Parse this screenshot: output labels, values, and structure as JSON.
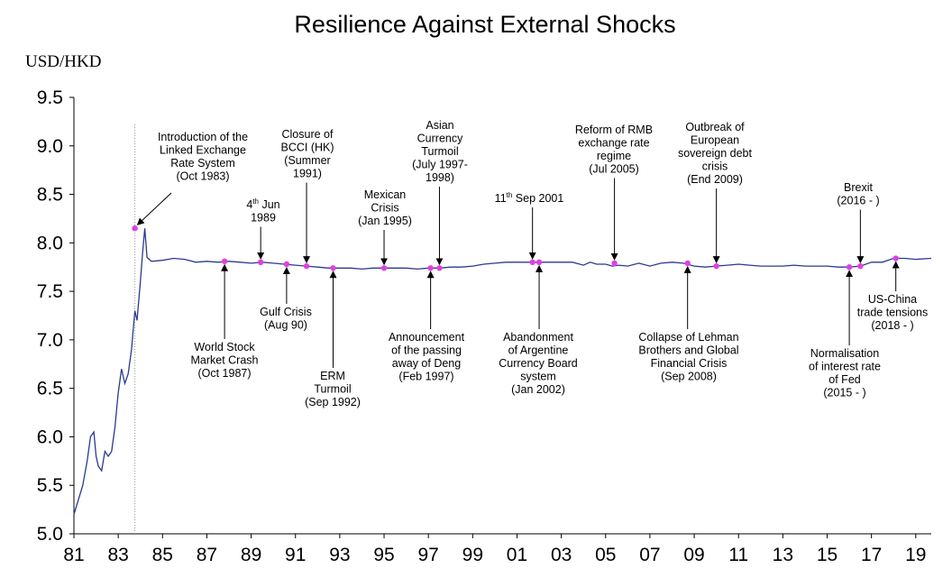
{
  "chart_data": {
    "type": "line",
    "title": "Resilience Against External Shocks",
    "ylabel": "USD/HKD",
    "xlabel": "",
    "ylim": [
      5.0,
      9.5
    ],
    "xlim": [
      81,
      119.7
    ],
    "yticks": [
      "9.5",
      "9.0",
      "8.5",
      "8.0",
      "7.5",
      "7.0",
      "6.5",
      "6.0",
      "5.5",
      "5.0"
    ],
    "xticks": [
      "81",
      "83",
      "85",
      "87",
      "89",
      "91",
      "93",
      "95",
      "97",
      "99",
      "01",
      "03",
      "05",
      "07",
      "09",
      "11",
      "13",
      "15",
      "17",
      "19"
    ],
    "series": [
      {
        "name": "USD/HKD",
        "color": "#2b3a8f",
        "points": [
          [
            81.0,
            5.2
          ],
          [
            81.2,
            5.35
          ],
          [
            81.4,
            5.5
          ],
          [
            81.6,
            5.75
          ],
          [
            81.75,
            6.0
          ],
          [
            81.9,
            6.05
          ],
          [
            82.0,
            5.8
          ],
          [
            82.1,
            5.7
          ],
          [
            82.25,
            5.65
          ],
          [
            82.4,
            5.85
          ],
          [
            82.55,
            5.8
          ],
          [
            82.7,
            5.85
          ],
          [
            82.85,
            6.1
          ],
          [
            83.0,
            6.45
          ],
          [
            83.15,
            6.7
          ],
          [
            83.3,
            6.55
          ],
          [
            83.45,
            6.65
          ],
          [
            83.6,
            6.9
          ],
          [
            83.75,
            7.3
          ],
          [
            83.85,
            7.2
          ],
          [
            84.0,
            7.6
          ],
          [
            84.1,
            7.9
          ],
          [
            84.2,
            8.15
          ],
          [
            84.3,
            7.85
          ],
          [
            84.5,
            7.81
          ],
          [
            85.0,
            7.82
          ],
          [
            85.5,
            7.84
          ],
          [
            86.0,
            7.83
          ],
          [
            86.5,
            7.8
          ],
          [
            87.0,
            7.81
          ],
          [
            87.5,
            7.8
          ],
          [
            88.0,
            7.81
          ],
          [
            88.5,
            7.8
          ],
          [
            89.0,
            7.79
          ],
          [
            89.5,
            7.8
          ],
          [
            90.0,
            7.79
          ],
          [
            90.5,
            7.78
          ],
          [
            91.0,
            7.77
          ],
          [
            91.5,
            7.76
          ],
          [
            92.0,
            7.75
          ],
          [
            92.5,
            7.74
          ],
          [
            93.0,
            7.74
          ],
          [
            93.5,
            7.74
          ],
          [
            94.0,
            7.73
          ],
          [
            94.5,
            7.74
          ],
          [
            95.0,
            7.74
          ],
          [
            95.5,
            7.74
          ],
          [
            96.0,
            7.74
          ],
          [
            96.5,
            7.73
          ],
          [
            97.0,
            7.74
          ],
          [
            97.5,
            7.74
          ],
          [
            98.0,
            7.75
          ],
          [
            98.5,
            7.75
          ],
          [
            99.0,
            7.76
          ],
          [
            99.5,
            7.78
          ],
          [
            100.0,
            7.79
          ],
          [
            100.5,
            7.8
          ],
          [
            101.0,
            7.8
          ],
          [
            101.5,
            7.8
          ],
          [
            102.0,
            7.8
          ],
          [
            102.5,
            7.8
          ],
          [
            103.0,
            7.8
          ],
          [
            103.5,
            7.8
          ],
          [
            104.0,
            7.77
          ],
          [
            104.3,
            7.8
          ],
          [
            104.6,
            7.78
          ],
          [
            105.0,
            7.78
          ],
          [
            105.3,
            7.76
          ],
          [
            105.6,
            7.77
          ],
          [
            106.0,
            7.76
          ],
          [
            106.5,
            7.79
          ],
          [
            107.0,
            7.76
          ],
          [
            107.5,
            7.79
          ],
          [
            108.0,
            7.8
          ],
          [
            108.5,
            7.79
          ],
          [
            109.0,
            7.76
          ],
          [
            109.5,
            7.75
          ],
          [
            110.0,
            7.76
          ],
          [
            110.5,
            7.77
          ],
          [
            111.0,
            7.78
          ],
          [
            111.5,
            7.77
          ],
          [
            112.0,
            7.76
          ],
          [
            112.5,
            7.76
          ],
          [
            113.0,
            7.76
          ],
          [
            113.5,
            7.77
          ],
          [
            114.0,
            7.76
          ],
          [
            114.5,
            7.76
          ],
          [
            115.0,
            7.76
          ],
          [
            115.5,
            7.75
          ],
          [
            116.0,
            7.75
          ],
          [
            116.5,
            7.76
          ],
          [
            117.0,
            7.8
          ],
          [
            117.5,
            7.8
          ],
          [
            118.0,
            7.84
          ],
          [
            118.5,
            7.84
          ],
          [
            119.0,
            7.83
          ],
          [
            119.7,
            7.84
          ]
        ]
      }
    ],
    "reference_line": {
      "x": 83.75,
      "style": "dotted",
      "color": "#999999"
    },
    "marker_color": "#e040e0",
    "events": [
      {
        "id": "linked-rate",
        "x": 83.75,
        "y": 8.15,
        "lines": [
          [
            "Introduction of the"
          ],
          [
            "Linked Exchange"
          ],
          [
            "Rate System"
          ],
          [
            "(Oct 1983)"
          ]
        ]
      },
      {
        "id": "stock-crash",
        "x": 87.8,
        "y": 7.81,
        "lines": [
          [
            "World Stock"
          ],
          [
            "Market Crash"
          ],
          [
            "(Oct 1987)"
          ]
        ]
      },
      {
        "id": "jun-1989",
        "x": 89.43,
        "y": 7.8,
        "lines": [
          [
            "4",
            "th",
            " Jun"
          ],
          [
            "1989"
          ]
        ]
      },
      {
        "id": "gulf-crisis",
        "x": 90.6,
        "y": 7.78,
        "lines": [
          [
            "Gulf Crisis"
          ],
          [
            "(Aug 90)"
          ]
        ]
      },
      {
        "id": "bcci",
        "x": 91.5,
        "y": 7.76,
        "lines": [
          [
            "Closure of"
          ],
          [
            "BCCI (HK)"
          ],
          [
            "(Summer"
          ],
          [
            "1991)"
          ]
        ]
      },
      {
        "id": "erm",
        "x": 92.7,
        "y": 7.74,
        "lines": [
          [
            "ERM"
          ],
          [
            "Turmoil"
          ],
          [
            "(Sep 1992)"
          ]
        ]
      },
      {
        "id": "mexican",
        "x": 95.0,
        "y": 7.74,
        "lines": [
          [
            "Mexican"
          ],
          [
            "Crisis"
          ],
          [
            "(Jan 1995)"
          ]
        ]
      },
      {
        "id": "deng",
        "x": 97.1,
        "y": 7.74,
        "lines": [
          [
            "Announcement"
          ],
          [
            "of the passing"
          ],
          [
            "away of Deng"
          ],
          [
            "(Feb 1997)"
          ]
        ]
      },
      {
        "id": "asian",
        "x": 97.5,
        "y": 7.74,
        "lines": [
          [
            "Asian"
          ],
          [
            "Currency"
          ],
          [
            "Turmoil"
          ],
          [
            "(July 1997-"
          ],
          [
            "1998)"
          ]
        ]
      },
      {
        "id": "sep-2001",
        "x": 101.7,
        "y": 7.8,
        "lines": [
          [
            "11",
            "th",
            " Sep 2001"
          ]
        ]
      },
      {
        "id": "argentine",
        "x": 102.0,
        "y": 7.8,
        "lines": [
          [
            "Abandonment"
          ],
          [
            "of Argentine"
          ],
          [
            "Currency Board"
          ],
          [
            "system"
          ],
          [
            "(Jan 2002)"
          ]
        ]
      },
      {
        "id": "rmb",
        "x": 105.4,
        "y": 7.79,
        "lines": [
          [
            "Reform of RMB"
          ],
          [
            "exchange rate"
          ],
          [
            "regime"
          ],
          [
            "(Jul 2005)"
          ]
        ]
      },
      {
        "id": "lehman",
        "x": 108.7,
        "y": 7.79,
        "lines": [
          [
            "Collapse of Lehman"
          ],
          [
            "Brothers and Global"
          ],
          [
            "Financial Crisis"
          ],
          [
            "(Sep 2008)"
          ]
        ]
      },
      {
        "id": "eurodebt",
        "x": 110.0,
        "y": 7.76,
        "lines": [
          [
            "Outbreak of"
          ],
          [
            "European"
          ],
          [
            "sovereign debt"
          ],
          [
            "crisis"
          ],
          [
            "(End 2009)"
          ]
        ]
      },
      {
        "id": "fed",
        "x": 116.0,
        "y": 7.75,
        "lines": [
          [
            "Normalisation"
          ],
          [
            "of interest rate"
          ],
          [
            "of Fed"
          ],
          [
            "(2015 - )"
          ]
        ]
      },
      {
        "id": "brexit",
        "x": 116.5,
        "y": 7.76,
        "lines": [
          [
            "Brexit"
          ],
          [
            "(2016 - )"
          ]
        ]
      },
      {
        "id": "uschina",
        "x": 118.1,
        "y": 7.84,
        "lines": [
          [
            "US-China"
          ],
          [
            "trade tensions"
          ],
          [
            "(2018 - )"
          ]
        ]
      }
    ]
  }
}
